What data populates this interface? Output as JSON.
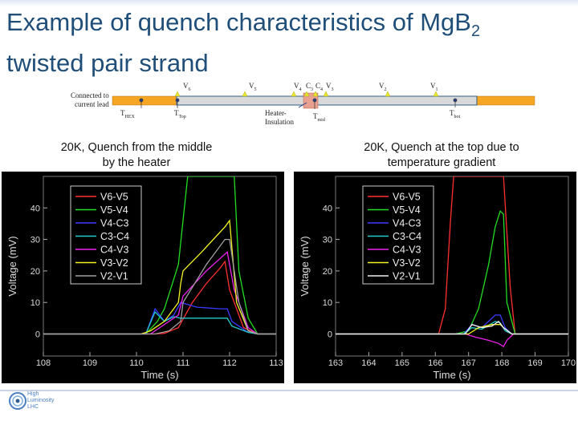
{
  "slide": {
    "title_line1_prefix": "Example of quench characteristics of Mg",
    "title_line1_b": "B",
    "title_line1_sub": "2",
    "title_line2": "twisted pair strand"
  },
  "schematic": {
    "connected_label": "Connected to\ncurrent lead",
    "v6": "V",
    "v6_sub": "6",
    "v5": "V",
    "v5_sub": "5",
    "v4": "V",
    "v4_sub": "4",
    "c3": "C",
    "c3_sub": "3",
    "c4": "C",
    "c4_sub": "4",
    "v3": "V",
    "v3_sub": "3",
    "v2": "V",
    "v2_sub": "2",
    "v1": "V",
    "v1_sub": "1",
    "thex": "T",
    "thex_sub": "HEX",
    "ttop": "T",
    "ttop_sub": "Top",
    "heater": "Heater-\nInsulation",
    "tmid": "T",
    "tmid_sub": "mid",
    "tbot": "T",
    "tbot_sub": "bot"
  },
  "captions": {
    "left": "20K, Quench from the middle\nby the heater",
    "right": "20K, Quench at the top due to\ntemperature gradient"
  },
  "logo": {
    "text": "High\nLuminosity\nLHC"
  },
  "colors": {
    "title": "#1f4e79",
    "v6_v5": "#ff3030",
    "v5_v4": "#22dd22",
    "v4_c3": "#3a3aff",
    "c3_c4": "#22cccc",
    "c4_v3": "#ee22ee",
    "v3_v2": "#f4f422",
    "v2_v1": "#a0a0a0"
  },
  "chart_data": [
    {
      "type": "line",
      "xlabel": "Time (s)",
      "ylabel": "Voltage (mV)",
      "xlim": [
        108,
        113
      ],
      "ylim": [
        -7,
        50
      ],
      "xticks": [
        108,
        109,
        110,
        111,
        112,
        113
      ],
      "yticks": [
        0,
        10,
        20,
        30,
        40
      ],
      "legend_position": "top-left",
      "series": [
        {
          "name": "V6-V5",
          "color": "#ff3030",
          "x": [
            108,
            110.4,
            110.6,
            110.9,
            111.2,
            111.5,
            111.8,
            111.9,
            112.0,
            112.3,
            112.6,
            113
          ],
          "y": [
            0,
            0,
            0.2,
            2,
            10,
            16,
            21,
            23,
            14,
            2,
            0,
            0
          ]
        },
        {
          "name": "V5-V4",
          "color": "#22dd22",
          "x": [
            108,
            110.2,
            110.45,
            110.6,
            110.9,
            111.0,
            111.1,
            111.6,
            111.9,
            112.0,
            112.1,
            112.2,
            112.4,
            112.6,
            113
          ],
          "y": [
            0,
            0,
            4,
            8,
            22,
            36,
            50,
            50,
            50,
            50,
            50,
            20,
            5,
            0,
            0
          ]
        },
        {
          "name": "V4-C3",
          "color": "#3a3aff",
          "x": [
            108,
            110.2,
            110.4,
            110.5,
            110.6,
            110.8,
            110.95,
            111.3,
            111.8,
            111.95,
            112.05,
            112.4,
            112.6,
            113
          ],
          "y": [
            0,
            0,
            8,
            6,
            4,
            6,
            10,
            8.5,
            8,
            8,
            4,
            0.5,
            0,
            0
          ]
        },
        {
          "name": "C3-C4",
          "color": "#22cccc",
          "x": [
            108,
            110.2,
            110.4,
            110.5,
            110.6,
            110.8,
            110.95,
            111.3,
            111.8,
            111.95,
            112.05,
            112.4,
            112.6,
            113
          ],
          "y": [
            0,
            0,
            7,
            5.5,
            4,
            5.5,
            5,
            5,
            5,
            5,
            2.5,
            0.5,
            0,
            0
          ]
        },
        {
          "name": "C4-V3",
          "color": "#ee22ee",
          "x": [
            108,
            110.3,
            110.5,
            110.9,
            111.0,
            111.5,
            111.8,
            111.95,
            112.1,
            112.4,
            112.6,
            113
          ],
          "y": [
            0,
            0,
            2,
            6,
            12,
            20,
            24,
            26,
            14,
            2,
            0,
            0
          ]
        },
        {
          "name": "V3-V2",
          "color": "#f4f422",
          "x": [
            108,
            110.1,
            110.3,
            110.6,
            110.9,
            110.95,
            111.0,
            111.4,
            111.9,
            112.0,
            112.15,
            112.4,
            112.6,
            113
          ],
          "y": [
            0,
            0,
            1,
            4,
            10,
            16,
            20,
            26,
            34,
            36,
            10,
            1,
            0,
            0
          ]
        },
        {
          "name": "V2-V1",
          "color": "#a0a0a0",
          "x": [
            108,
            110.4,
            110.7,
            110.95,
            111.0,
            111.5,
            111.9,
            112.0,
            112.2,
            112.4,
            112.6,
            113
          ],
          "y": [
            0,
            0,
            1,
            4,
            10,
            22,
            30,
            30,
            10,
            1,
            0,
            0
          ]
        }
      ]
    },
    {
      "type": "line",
      "xlabel": "Time (s)",
      "ylabel": "Voltage (mV)",
      "xlim": [
        163,
        170
      ],
      "ylim": [
        -7,
        50
      ],
      "xticks": [
        163,
        164,
        165,
        166,
        167,
        168,
        169,
        170
      ],
      "yticks": [
        0,
        10,
        20,
        30,
        40
      ],
      "legend_position": "top-left",
      "series": [
        {
          "name": "V6-V5",
          "color": "#ff3030",
          "x": [
            163,
            166.1,
            166.3,
            166.45,
            166.55,
            167.9,
            168.05,
            168.25,
            168.4,
            170
          ],
          "y": [
            0,
            0,
            8,
            35,
            50,
            50,
            50,
            15,
            0,
            0
          ]
        },
        {
          "name": "V5-V4",
          "color": "#22dd22",
          "x": [
            163,
            166.6,
            167.0,
            167.3,
            167.6,
            167.8,
            167.95,
            168.05,
            168.15,
            168.4,
            170
          ],
          "y": [
            0,
            0,
            1,
            8,
            22,
            34,
            39,
            38,
            10,
            0,
            0
          ]
        },
        {
          "name": "V4-C3",
          "color": "#3a3aff",
          "x": [
            163,
            166.85,
            167.1,
            167.4,
            167.8,
            167.95,
            168.1,
            168.3,
            170
          ],
          "y": [
            0,
            0,
            3,
            2,
            6,
            6,
            2,
            0,
            0
          ]
        },
        {
          "name": "C3-C4",
          "color": "#22cccc",
          "x": [
            163,
            166.85,
            167.1,
            167.4,
            167.8,
            167.95,
            168.1,
            168.3,
            170
          ],
          "y": [
            0,
            0,
            2,
            1.5,
            4,
            3.5,
            1,
            0,
            0
          ]
        },
        {
          "name": "C4-V3",
          "color": "#ee22ee",
          "x": [
            163,
            166.9,
            167.2,
            167.6,
            167.9,
            168.05,
            168.15,
            168.35,
            170
          ],
          "y": [
            0,
            0,
            -1,
            -2,
            -3,
            -4,
            -2,
            0,
            0
          ]
        },
        {
          "name": "V3-V2",
          "color": "#f4f422",
          "x": [
            163,
            167.0,
            167.3,
            167.7,
            167.95,
            168.05,
            168.3,
            170
          ],
          "y": [
            0,
            0,
            2,
            3,
            3,
            2,
            0,
            0
          ]
        },
        {
          "name": "V2-V1",
          "color": "#f0f0f0",
          "x": [
            163,
            166.9,
            167.1,
            167.4,
            167.7,
            167.9,
            168.05,
            168.3,
            170
          ],
          "y": [
            0,
            0,
            3,
            2,
            2.5,
            4,
            2,
            0,
            0
          ]
        }
      ]
    }
  ]
}
